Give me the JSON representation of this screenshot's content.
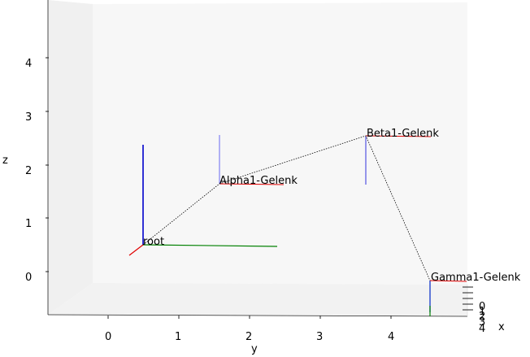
{
  "chart_data": {
    "type": "3d-line",
    "title": "",
    "xlabel": "x",
    "ylabel": "y",
    "zlabel": "z",
    "x_ticks": [
      "0",
      "1",
      "2",
      "3",
      "4"
    ],
    "y_ticks": [
      "0",
      "1",
      "2",
      "3",
      "4"
    ],
    "z_ticks": [
      "0",
      "1",
      "2",
      "3",
      "4"
    ],
    "grid": false,
    "joints": [
      {
        "name": "root",
        "y": 0.5,
        "z": 0.5
      },
      {
        "name": "Alpha1-Gelenk",
        "y": 1.6,
        "z": 1.6
      },
      {
        "name": "Beta1-Gelenk",
        "y": 3.9,
        "z": 2.5
      },
      {
        "name": "Gamma1-Gelenk",
        "y": 4.5,
        "z": -0.1
      }
    ],
    "colors": {
      "x_axis": "#e00000",
      "y_axis": "#008000",
      "z_axis": "#0000cc",
      "link": "#000000"
    }
  }
}
